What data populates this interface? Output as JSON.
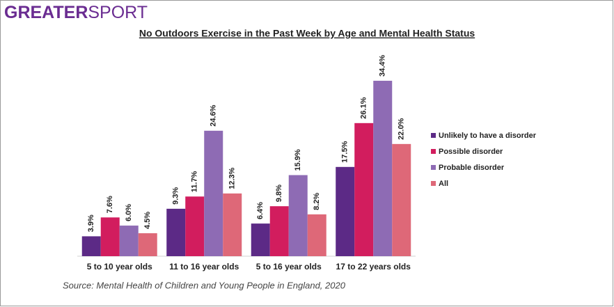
{
  "logo": {
    "bold": "GREATER",
    "light": "SPORT"
  },
  "chart_data": {
    "type": "bar",
    "title": "No Outdoors Exercise in the Past Week by Age and Mental Health Status",
    "source": "Source: Mental Health of Children and Young People in England, 2020",
    "categories": [
      "5 to 10 year olds",
      "11 to 16 year olds",
      "5 to 16 year olds",
      "17 to 22 years olds"
    ],
    "series": [
      {
        "name": "Unlikely to have a disorder",
        "color": "#5c2a86",
        "values": [
          3.9,
          9.3,
          6.4,
          17.5
        ],
        "value_labels": [
          "3.9%",
          "9.3%",
          "6.4%",
          "17.5%"
        ]
      },
      {
        "name": "Possible disorder",
        "color": "#d21d5e",
        "values": [
          7.6,
          11.7,
          9.8,
          26.1
        ],
        "value_labels": [
          "7.6%",
          "11.7%",
          "9.8%",
          "26.1%"
        ]
      },
      {
        "name": "Probable disorder",
        "color": "#8e6bb4",
        "values": [
          6.0,
          24.6,
          15.9,
          34.4
        ],
        "value_labels": [
          "6.0%",
          "24.6%",
          "15.9%",
          "34.4%"
        ]
      },
      {
        "name": "All",
        "color": "#de6878",
        "values": [
          4.5,
          12.3,
          8.2,
          22.0
        ],
        "value_labels": [
          "4.5%",
          "12.3%",
          "8.2%",
          "22.0%"
        ]
      }
    ],
    "ylim": [
      0,
      40
    ],
    "legend": "right",
    "grid": false
  }
}
